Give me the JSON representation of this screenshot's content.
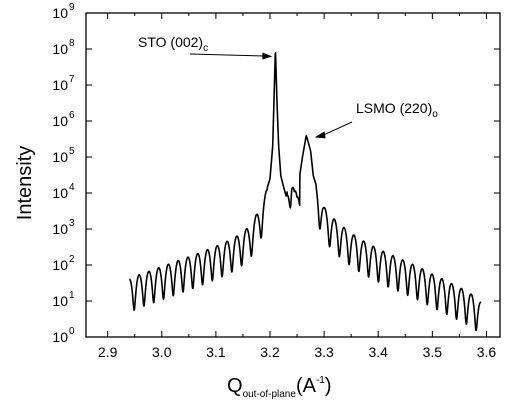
{
  "chart_data": {
    "type": "line",
    "title": "",
    "xlabel": {
      "main": "Q",
      "sub": "out-of-plane",
      "unit_open": "(A",
      "unit_sup": "-1",
      "unit_close": ")"
    },
    "ylabel": "Intensity",
    "yscale": "log",
    "xlim": [
      2.86,
      3.625
    ],
    "ylim": [
      1,
      1000000000
    ],
    "x_ticks": [
      "2.9",
      "3.0",
      "3.1",
      "3.2",
      "3.3",
      "3.4",
      "3.5",
      "3.6"
    ],
    "y_ticks": [
      {
        "base": "10",
        "exp": "0"
      },
      {
        "base": "10",
        "exp": "1"
      },
      {
        "base": "10",
        "exp": "2"
      },
      {
        "base": "10",
        "exp": "3"
      },
      {
        "base": "10",
        "exp": "4"
      },
      {
        "base": "10",
        "exp": "5"
      },
      {
        "base": "10",
        "exp": "6"
      },
      {
        "base": "10",
        "exp": "7"
      },
      {
        "base": "10",
        "exp": "8"
      },
      {
        "base": "10",
        "exp": "9"
      }
    ],
    "grid": false,
    "line_color": "#000000",
    "series": [
      {
        "x": [
          2.94,
          2.96,
          2.98,
          3.0,
          3.02,
          3.04,
          3.06,
          3.08,
          3.1,
          3.12,
          3.14,
          3.16,
          3.17,
          3.18,
          3.19,
          3.2,
          3.205,
          3.21,
          3.213,
          3.216,
          3.22,
          3.225,
          3.23,
          3.24,
          3.245,
          3.25,
          3.26,
          3.267,
          3.275,
          3.28,
          3.29,
          3.3,
          3.32,
          3.34,
          3.36,
          3.38,
          3.4,
          3.42,
          3.44,
          3.46,
          3.48,
          3.5,
          3.52,
          3.54,
          3.56,
          3.58,
          3.59
        ],
        "envelope": [
          40,
          55,
          70,
          90,
          115,
          150,
          190,
          250,
          330,
          450,
          650,
          1100,
          1800,
          3500,
          8000,
          25000,
          200000,
          100000000,
          3000000,
          200000,
          30000,
          15000,
          8000,
          50000,
          12000,
          10000,
          100000,
          400000,
          150000,
          30000,
          10000,
          4000,
          1800,
          1000,
          600,
          400,
          280,
          200,
          150,
          110,
          80,
          55,
          40,
          28,
          20,
          13,
          9
        ]
      }
    ],
    "annotations": [
      {
        "text": "STO (002)",
        "sub": "c",
        "points_to": {
          "x": 3.21,
          "y": 80000000
        }
      },
      {
        "text": "LSMO (220)",
        "sub": "o",
        "points_to": {
          "x": 3.275,
          "y": 350000
        }
      }
    ]
  }
}
